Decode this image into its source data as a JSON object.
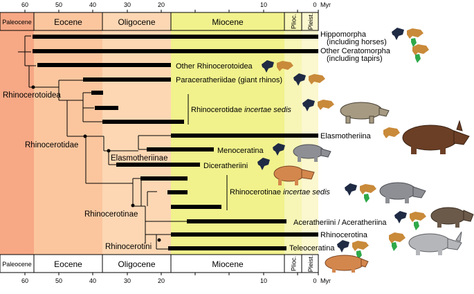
{
  "axis": {
    "unit": "Myr",
    "ticks": [
      "60",
      "50",
      "40",
      "30",
      "20",
      "10",
      "0"
    ]
  },
  "epochs": [
    {
      "name": "Paleocene",
      "start": 66,
      "end": 56,
      "color": "#f7a885"
    },
    {
      "name": "Eocene",
      "start": 56,
      "end": 33.9,
      "color": "#fbc69e"
    },
    {
      "name": "Oligocene",
      "start": 33.9,
      "end": 23,
      "color": "#fdd7b3"
    },
    {
      "name": "Miocene",
      "start": 23,
      "end": 5.3,
      "color": "#f1f28c"
    },
    {
      "name": "Plioc.",
      "start": 5.3,
      "end": 2.6,
      "color": "#f7f6b6"
    },
    {
      "name": "Pleist.",
      "start": 2.6,
      "end": 0,
      "color": "#fbf7cf"
    }
  ],
  "taxa": {
    "hippomorpha": {
      "line1": "Hippomorpha",
      "line2": "(including horses)"
    },
    "ceratomorpha": {
      "line1": "Other Ceratomorpha",
      "line2": "(including tapirs)"
    },
    "other_rhinocerotoidea": "Other Rhinocerotoidea",
    "paraceratheriidae": "Paraceratheriidae (giant rhinos)",
    "rhinocerotidae_is": {
      "name": "Rhinocerotidae",
      "qualifier": "incertae sedis"
    },
    "elasmotheriina": "Elasmotheriina",
    "menoceratina": "Menoceratina",
    "diceratheriini": "Diceratheriini",
    "rhinocerotinae_is": {
      "name": "Rhinocerotinae",
      "qualifier": "incertae sedis"
    },
    "aceratheriini": "Aceratheriini / Aceratheriina",
    "rhinocerotina": "Rhinocerotina",
    "teleoceratina": "Teleoceratina"
  },
  "clades": {
    "rhinocerotoidea": "Rhinocerotoidea",
    "rhinocerotidae": "Rhinocerotidae",
    "elasmotheriinae": "Elasmotheriinae",
    "rhinocerotinae": "Rhinocerotinae",
    "rhinocerotini": "Rhinocerotini"
  },
  "colors": {
    "bar": "#000000",
    "continent_dark": "#1f2a44",
    "continent_tan": "#c98a3a",
    "continent_green": "#2fa84a",
    "rhino_brown": "#6b3f25",
    "rhino_grey": "#8d8f94",
    "rhino_tan": "#a69a82",
    "rhino_orange": "#d4874d"
  }
}
